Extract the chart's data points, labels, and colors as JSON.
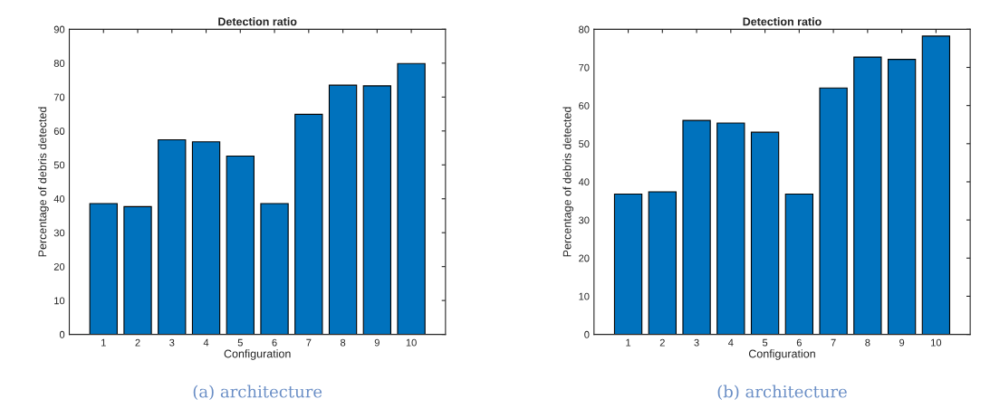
{
  "chart_data": [
    {
      "type": "bar",
      "title": "Detection ratio",
      "xlabel": "Configuration",
      "ylabel": "Percentage of debris detected",
      "categories": [
        "1",
        "2",
        "3",
        "4",
        "5",
        "6",
        "7",
        "8",
        "9",
        "10"
      ],
      "values": [
        38.6,
        37.7,
        57.4,
        56.8,
        52.6,
        38.6,
        64.9,
        73.5,
        73.3,
        79.9
      ],
      "color": "#0072bd",
      "ylim": [
        0,
        90
      ],
      "yticks": [
        0,
        10,
        20,
        30,
        40,
        50,
        60,
        70,
        80,
        90
      ],
      "grid": false,
      "annotations": [
        "(a) architecture"
      ]
    },
    {
      "type": "bar",
      "title": "Detection ratio",
      "xlabel": "Configuration",
      "ylabel": "Percentage of debris detected",
      "categories": [
        "1",
        "2",
        "3",
        "4",
        "5",
        "6",
        "7",
        "8",
        "9",
        "10"
      ],
      "values": [
        36.8,
        37.4,
        56.1,
        55.4,
        53.0,
        36.8,
        64.6,
        72.7,
        72.1,
        78.2
      ],
      "color": "#0072bd",
      "ylim": [
        0,
        80
      ],
      "yticks": [
        0,
        10,
        20,
        30,
        40,
        50,
        60,
        70,
        80
      ],
      "grid": false,
      "annotations": [
        "(b) architecture"
      ]
    }
  ]
}
